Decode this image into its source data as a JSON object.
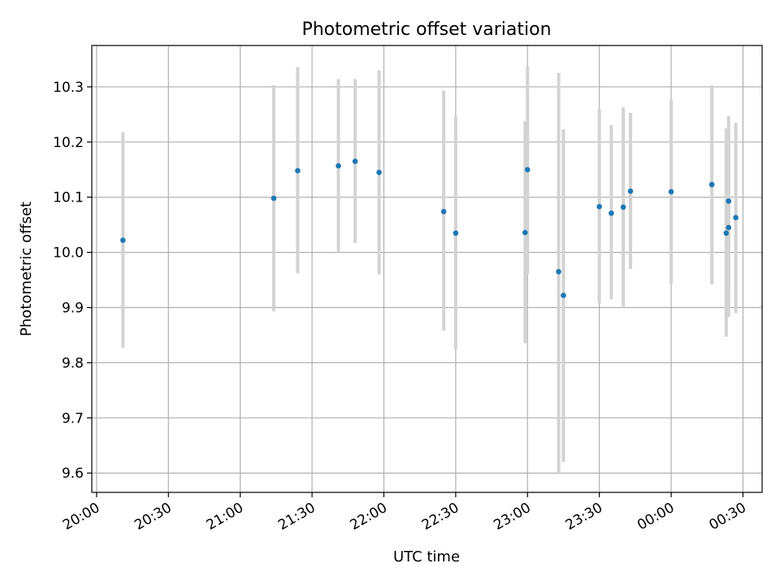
{
  "chart_data": {
    "type": "scatter",
    "title": "Photometric offset variation",
    "xlabel": "UTC time",
    "ylabel": "Photometric offset",
    "x_axis_kind": "time",
    "xlim": [
      "19:58",
      "00:38"
    ],
    "ylim": [
      9.565,
      10.375
    ],
    "x_ticks": [
      "20:00",
      "20:30",
      "21:00",
      "21:30",
      "22:00",
      "22:30",
      "23:00",
      "23:30",
      "00:00",
      "00:30"
    ],
    "y_ticks": [
      9.6,
      9.7,
      9.8,
      9.9,
      10.0,
      10.1,
      10.2,
      10.3
    ],
    "grid": true,
    "error_bar_color": "#d3d3d3",
    "marker_color": "#1f77b4",
    "points": [
      {
        "x": "20:11",
        "y": 10.022,
        "ylow": 9.827,
        "yhigh": 10.218
      },
      {
        "x": "21:14",
        "y": 10.098,
        "ylow": 9.893,
        "yhigh": 10.303
      },
      {
        "x": "21:24",
        "y": 10.148,
        "ylow": 9.962,
        "yhigh": 10.336
      },
      {
        "x": "21:41",
        "y": 10.157,
        "ylow": 10.0,
        "yhigh": 10.314
      },
      {
        "x": "21:48",
        "y": 10.165,
        "ylow": 10.017,
        "yhigh": 10.314
      },
      {
        "x": "21:58",
        "y": 10.145,
        "ylow": 9.96,
        "yhigh": 10.33
      },
      {
        "x": "22:25",
        "y": 10.074,
        "ylow": 9.858,
        "yhigh": 10.293
      },
      {
        "x": "22:30",
        "y": 10.035,
        "ylow": 9.825,
        "yhigh": 10.247
      },
      {
        "x": "22:59",
        "y": 10.036,
        "ylow": 9.835,
        "yhigh": 10.238
      },
      {
        "x": "23:00",
        "y": 10.15,
        "ylow": 9.961,
        "yhigh": 10.338
      },
      {
        "x": "23:13",
        "y": 9.965,
        "ylow": 9.6,
        "yhigh": 10.325
      },
      {
        "x": "23:15",
        "y": 9.922,
        "ylow": 9.62,
        "yhigh": 10.223
      },
      {
        "x": "23:30",
        "y": 10.083,
        "ylow": 9.908,
        "yhigh": 10.26
      },
      {
        "x": "23:35",
        "y": 10.071,
        "ylow": 9.915,
        "yhigh": 10.231
      },
      {
        "x": "23:40",
        "y": 10.082,
        "ylow": 9.902,
        "yhigh": 10.263
      },
      {
        "x": "23:43",
        "y": 10.111,
        "ylow": 9.97,
        "yhigh": 10.253
      },
      {
        "x": "00:00",
        "y": 10.11,
        "ylow": 9.943,
        "yhigh": 10.277
      },
      {
        "x": "00:17",
        "y": 10.123,
        "ylow": 9.942,
        "yhigh": 10.303
      },
      {
        "x": "00:23",
        "y": 10.035,
        "ylow": 9.847,
        "yhigh": 10.225
      },
      {
        "x": "00:24",
        "y": 10.093,
        "ylow": 9.94,
        "yhigh": 10.247
      },
      {
        "x": "00:24",
        "y": 10.045,
        "ylow": 9.883,
        "yhigh": 10.21
      },
      {
        "x": "00:27",
        "y": 10.063,
        "ylow": 9.89,
        "yhigh": 10.235
      }
    ]
  }
}
